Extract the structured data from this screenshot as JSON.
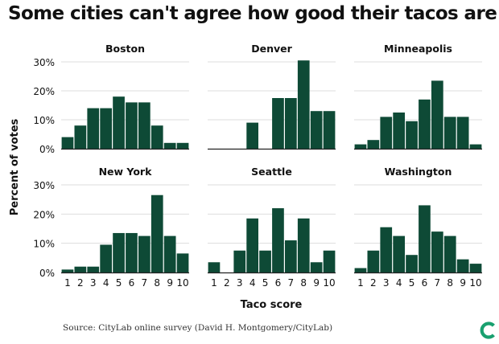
{
  "title": "Some cities can't agree how good their tacos are",
  "source": "Source: CityLab online survey (David H. Montgomery/CityLab)",
  "logo_icon": "citylab-logo-icon",
  "colors": {
    "bar": "#0e4a36",
    "grid": "#dddddd",
    "axis": "#222222",
    "logo": "#19a06f"
  },
  "chart_data": {
    "type": "bar",
    "layout": "small-multiples",
    "xlabel": "Taco score",
    "ylabel": "Percent of votes",
    "categories": [
      "1",
      "2",
      "3",
      "4",
      "5",
      "6",
      "7",
      "8",
      "9",
      "10"
    ],
    "ylim": [
      0,
      30
    ],
    "yticks": [
      0,
      10,
      20,
      30
    ],
    "ytick_labels": [
      "0%",
      "10%",
      "20%",
      "30%"
    ],
    "series": [
      {
        "name": "Boston",
        "values": [
          4,
          8,
          14,
          14,
          18,
          16,
          16,
          8,
          2,
          2
        ]
      },
      {
        "name": "Denver",
        "values": [
          0,
          0,
          0,
          9,
          0,
          17.5,
          17.5,
          30.5,
          13,
          13
        ]
      },
      {
        "name": "Minneapolis",
        "values": [
          1.5,
          3,
          11,
          12.5,
          9.5,
          17,
          23.5,
          11,
          11,
          1.5
        ]
      },
      {
        "name": "New York",
        "values": [
          1,
          2,
          2,
          9.5,
          13.5,
          13.5,
          12.5,
          26.5,
          12.5,
          6.5
        ]
      },
      {
        "name": "Seattle",
        "values": [
          3.5,
          0,
          7.5,
          18.5,
          7.5,
          22,
          11,
          18.5,
          3.5,
          7.5
        ]
      },
      {
        "name": "Washington",
        "values": [
          1.5,
          7.5,
          15.5,
          12.5,
          6,
          23,
          14,
          12.5,
          4.5,
          3
        ]
      }
    ]
  }
}
